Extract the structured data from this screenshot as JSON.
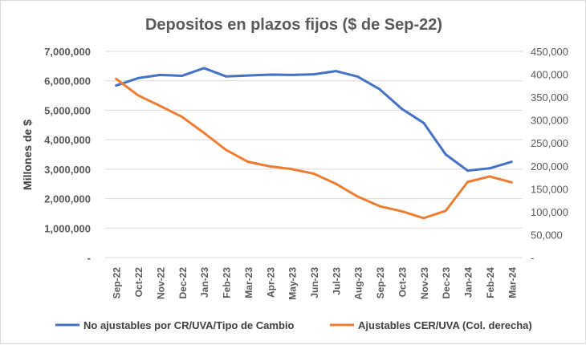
{
  "chart_data": {
    "type": "line",
    "title": "Depositos en plazos fijos ($ de Sep-22)",
    "ylabel": "Millones de $",
    "ylim": [
      0,
      7000000
    ],
    "y2lim": [
      0,
      450000
    ],
    "yticks": [
      "-",
      "1,000,000",
      "2,000,000",
      "3,000,000",
      "4,000,000",
      "5,000,000",
      "6,000,000",
      "7,000,000"
    ],
    "y2ticks": [
      "-",
      "50,000",
      "100,000",
      "150,000",
      "200,000",
      "250,000",
      "300,000",
      "350,000",
      "400,000",
      "450,000"
    ],
    "grid": true,
    "legend": "bottom",
    "categories": [
      "Sep-22",
      "Oct-22",
      "Nov-22",
      "Dec-22",
      "Jan-23",
      "Feb-23",
      "Mar-23",
      "Apr-23",
      "May-23",
      "Jun-23",
      "Jul-23",
      "Aug-23",
      "Sep-23",
      "Oct-23",
      "Nov-23",
      "Dec-23",
      "Jan-24",
      "Feb-24",
      "Mar-24"
    ],
    "series": [
      {
        "name": "No ajustables por CR/UVA/Tipo de Cambio",
        "axis": "left",
        "color": "#4472C4",
        "values": [
          5840000,
          6090000,
          6200000,
          6170000,
          6430000,
          6150000,
          6180000,
          6210000,
          6200000,
          6220000,
          6330000,
          6140000,
          5710000,
          5050000,
          4570000,
          3500000,
          2950000,
          3030000,
          3250000
        ]
      },
      {
        "name": "Ajustables CER/UVA (Col. derecha)",
        "axis": "right",
        "color": "#ED7D31",
        "values": [
          390000,
          354000,
          331000,
          307000,
          272000,
          235000,
          209000,
          199000,
          193000,
          183000,
          161000,
          133000,
          112000,
          101000,
          86000,
          102000,
          165000,
          177000,
          164000
        ]
      }
    ]
  }
}
